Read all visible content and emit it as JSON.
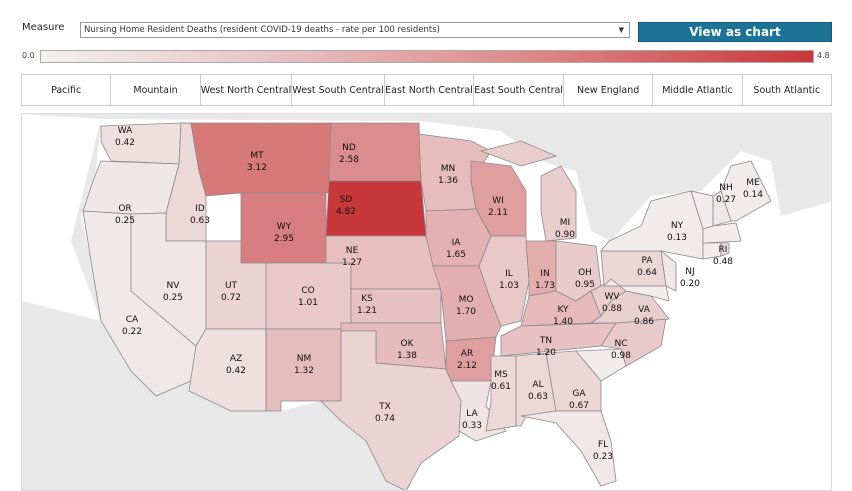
{
  "measure": {
    "label": "Measure",
    "selected": "Nursing Home Resident Deaths (resident COVID-19 deaths - rate per 100 residents)",
    "dropdown_icon": "triangle-down"
  },
  "view_as_chart_label": "View as chart",
  "legend": {
    "min": "0.0",
    "max": "4.8",
    "min_color": "#f2f0ef",
    "max_color": "#c8373a"
  },
  "regions": [
    "Pacific",
    "Mountain",
    "West North Central",
    "West South Central",
    "East North Central",
    "East South Central",
    "New England",
    "Middle Atlantic",
    "South Atlantic"
  ],
  "states": [
    {
      "abbr": "WA",
      "value": "0.42"
    },
    {
      "abbr": "OR",
      "value": "0.25"
    },
    {
      "abbr": "CA",
      "value": "0.22"
    },
    {
      "abbr": "ID",
      "value": "0.63"
    },
    {
      "abbr": "NV",
      "value": "0.25"
    },
    {
      "abbr": "MT",
      "value": "3.12"
    },
    {
      "abbr": "WY",
      "value": "2.95"
    },
    {
      "abbr": "UT",
      "value": "0.72"
    },
    {
      "abbr": "CO",
      "value": "1.01"
    },
    {
      "abbr": "AZ",
      "value": "0.42"
    },
    {
      "abbr": "NM",
      "value": "1.32"
    },
    {
      "abbr": "ND",
      "value": "2.58"
    },
    {
      "abbr": "SD",
      "value": "4.82"
    },
    {
      "abbr": "NE",
      "value": "1.27"
    },
    {
      "abbr": "KS",
      "value": "1.21"
    },
    {
      "abbr": "OK",
      "value": "1.38"
    },
    {
      "abbr": "TX",
      "value": "0.74"
    },
    {
      "abbr": "MN",
      "value": "1.36"
    },
    {
      "abbr": "IA",
      "value": "1.65"
    },
    {
      "abbr": "MO",
      "value": "1.70"
    },
    {
      "abbr": "AR",
      "value": "2.12"
    },
    {
      "abbr": "LA",
      "value": "0.33"
    },
    {
      "abbr": "WI",
      "value": "2.11"
    },
    {
      "abbr": "IL",
      "value": "1.03"
    },
    {
      "abbr": "MI",
      "value": "0.90"
    },
    {
      "abbr": "IN",
      "value": "1.73"
    },
    {
      "abbr": "OH",
      "value": "0.95"
    },
    {
      "abbr": "KY",
      "value": "1.40"
    },
    {
      "abbr": "TN",
      "value": "1.20"
    },
    {
      "abbr": "MS",
      "value": "0.61"
    },
    {
      "abbr": "AL",
      "value": "0.63"
    },
    {
      "abbr": "GA",
      "value": "0.67"
    },
    {
      "abbr": "FL",
      "value": "0.23"
    },
    {
      "abbr": "NC",
      "value": "0.98"
    },
    {
      "abbr": "VA",
      "value": "0.86"
    },
    {
      "abbr": "WV",
      "value": "0.88"
    },
    {
      "abbr": "PA",
      "value": "0.64"
    },
    {
      "abbr": "NY",
      "value": "0.13"
    },
    {
      "abbr": "NJ",
      "value": "0.20"
    },
    {
      "abbr": "ME",
      "value": "0.14"
    },
    {
      "abbr": "NH",
      "value": "0.27"
    },
    {
      "abbr": "RI",
      "value": "0.48"
    }
  ]
}
